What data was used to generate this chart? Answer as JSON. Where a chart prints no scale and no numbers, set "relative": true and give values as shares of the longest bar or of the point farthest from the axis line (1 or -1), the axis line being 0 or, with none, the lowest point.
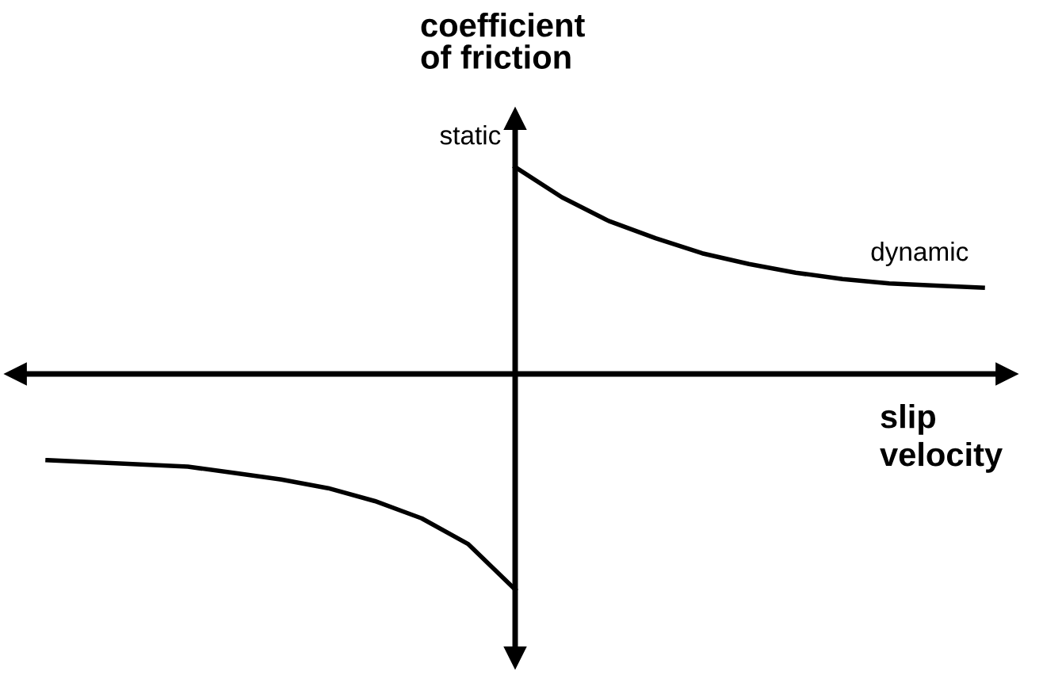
{
  "chart_data": {
    "type": "line",
    "relative": true,
    "xlabel": "slip\nvelocity",
    "ylabel": "coefficient\nof friction",
    "categories": [
      null,
      null,
      null,
      null,
      null,
      null,
      null,
      null,
      null,
      null,
      null,
      null,
      null,
      null,
      null,
      null,
      null,
      null,
      null,
      null,
      null
    ],
    "series": [
      {
        "color": "#000000",
        "values": [
          -0.4,
          -0.41,
          -0.42,
          -0.43,
          -0.46,
          -0.49,
          -0.53,
          -0.59,
          -0.67,
          -0.79,
          -1,
          null,
          null,
          null,
          null,
          null,
          null,
          null,
          null,
          null,
          null
        ]
      },
      {
        "color": "#000000",
        "values": [
          null,
          null,
          null,
          null,
          null,
          null,
          null,
          null,
          null,
          null,
          0.96,
          0.82,
          0.71,
          0.63,
          0.56,
          0.51,
          0.47,
          0.44,
          0.42,
          0.41,
          0.4
        ]
      }
    ],
    "annotations": [
      "static",
      "dynamic"
    ],
    "line_style": "solid"
  }
}
